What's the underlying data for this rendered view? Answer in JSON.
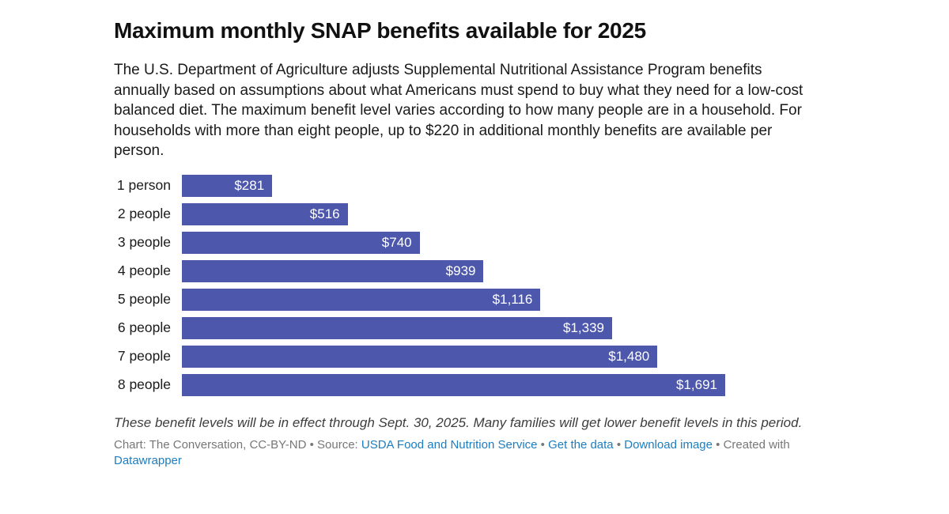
{
  "header": {
    "title": "Maximum monthly SNAP benefits available for 2025",
    "description": "The U.S. Department of Agriculture adjusts Supplemental Nutritional Assistance Program benefits annually based on assumptions about what Americans must spend to buy what they need for a low-cost balanced diet. The maximum benefit level varies according to how many people are in a household. For households with more than eight people, up to $220 in additional monthly benefits are available per person."
  },
  "chart_data": {
    "type": "bar",
    "orientation": "horizontal",
    "title": "Maximum monthly SNAP benefits available for 2025",
    "categories": [
      "1 person",
      "2 people",
      "3 people",
      "4 people",
      "5 people",
      "6 people",
      "7 people",
      "8 people"
    ],
    "values": [
      281,
      516,
      740,
      939,
      1116,
      1339,
      1480,
      1691
    ],
    "value_labels": [
      "$281",
      "$516",
      "$740",
      "$939",
      "$1,116",
      "$1,339",
      "$1,480",
      "$1,691"
    ],
    "xlabel": "",
    "ylabel": "",
    "xlim": [
      0,
      1691
    ],
    "grid": false,
    "legend": false,
    "bar_color": "#4d58ad",
    "value_label_color": "#ffffff",
    "category_label_color": "#1a1a1a"
  },
  "footer": {
    "note": "These benefit levels will be in effect through Sept. 30, 2025. Many families will get lower benefit levels in this period.",
    "credit": {
      "prefix": "Chart: The Conversation, CC-BY-ND • Source: ",
      "source_link": "USDA Food and Nutrition Service",
      "sep1": " • ",
      "get_data_link": "Get the data",
      "sep2": " • ",
      "download_link": "Download image",
      "created_with": " • Created with ",
      "datawrapper_link": "Datawrapper"
    },
    "link_color": "#1d7dbf",
    "credit_text_color": "#777777"
  }
}
